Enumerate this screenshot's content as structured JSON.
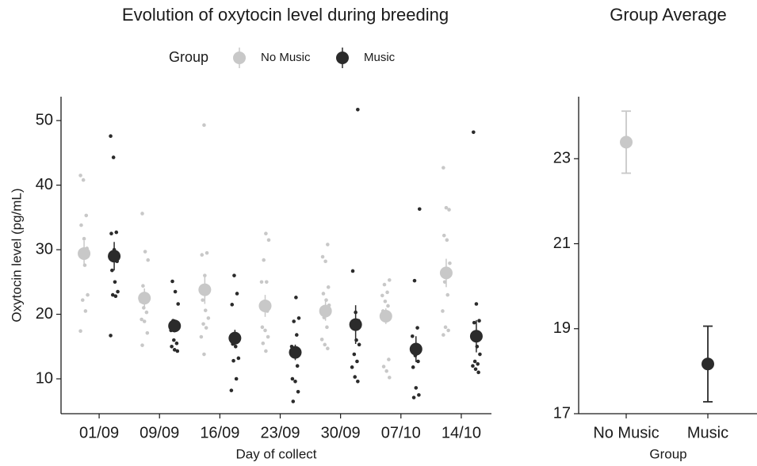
{
  "chart_data": [
    {
      "type": "dot",
      "title": "Evolution of oxytocin level during breeding",
      "legend_title": "Group",
      "x_label": "Day of collect",
      "y_label": "Oxytocin level (pg/mL)",
      "categories": [
        "01/09",
        "09/09",
        "16/09",
        "23/09",
        "30/09",
        "07/10",
        "14/10"
      ],
      "ylim": [
        4.6,
        53.7
      ],
      "yticks": [
        10,
        20,
        30,
        40,
        50
      ],
      "series": [
        {
          "name": "No Music",
          "color": "#c8c8c8",
          "values": [
            29.4,
            22.5,
            23.8,
            21.3,
            20.5,
            19.7,
            26.4
          ],
          "errors": [
            2.0,
            1.5,
            2.2,
            1.7,
            1.5,
            1.2,
            2.2
          ],
          "points": [
            [
              41.5,
              40.8,
              35.3,
              33.8,
              31.7,
              30.2,
              29.0,
              27.6,
              23.0,
              22.2,
              20.5,
              17.4
            ],
            [
              35.6,
              29.7,
              28.4,
              24.4,
              23.0,
              22.0,
              21.0,
              20.3,
              19.2,
              18.9,
              17.1,
              15.2
            ],
            [
              49.3,
              29.5,
              29.2,
              26.0,
              24.0,
              22.2,
              20.6,
              19.4,
              18.5,
              17.9,
              16.5,
              13.8
            ],
            [
              32.5,
              31.5,
              28.4,
              25.0,
              25.0,
              22.0,
              20.5,
              18.0,
              17.5,
              16.5,
              15.5,
              14.3
            ],
            [
              30.8,
              28.9,
              28.2,
              24.2,
              23.2,
              22.2,
              21.4,
              19.5,
              18.0,
              16.1,
              15.3,
              14.7
            ],
            [
              25.3,
              24.6,
              23.4,
              22.9,
              22.0,
              21.3,
              20.5,
              19.1,
              13.0,
              11.9,
              11.2,
              10.2
            ],
            [
              42.7,
              36.5,
              36.2,
              32.2,
              31.5,
              27.9,
              25.0,
              23.0,
              20.5,
              18.0,
              17.5,
              16.8
            ]
          ]
        },
        {
          "name": "Music",
          "color": "#2b2b2b",
          "values": [
            29.0,
            18.2,
            16.3,
            14.1,
            18.4,
            14.6,
            16.6
          ],
          "errors": [
            2.2,
            1.0,
            1.3,
            1.2,
            3.0,
            2.0,
            2.5
          ],
          "points": [
            [
              47.6,
              44.3,
              32.7,
              32.5,
              30.0,
              28.2,
              26.8,
              25.0,
              23.5,
              23.0,
              22.8,
              16.7
            ],
            [
              25.1,
              23.5,
              21.6,
              19.0,
              18.3,
              17.5,
              16.0,
              15.5,
              15.0,
              14.5,
              14.3
            ],
            [
              26.0,
              23.2,
              21.5,
              17.0,
              16.0,
              15.4,
              15.0,
              13.2,
              12.8,
              10.0,
              8.2
            ],
            [
              22.6,
              19.4,
              18.9,
              16.8,
              15.0,
              13.5,
              12.0,
              10.0,
              9.6,
              8.0,
              6.5
            ],
            [
              51.7,
              26.7,
              20.3,
              19.0,
              18.8,
              16.0,
              15.3,
              13.8,
              12.7,
              11.8,
              10.3,
              9.6
            ],
            [
              36.3,
              25.2,
              17.9,
              16.6,
              13.6,
              12.7,
              11.8,
              8.6,
              7.5,
              7.1
            ],
            [
              48.2,
              21.6,
              19.0,
              18.7,
              15.0,
              13.8,
              12.7,
              12.3,
              12.0,
              11.5,
              11.0
            ]
          ]
        }
      ]
    },
    {
      "type": "pointrange",
      "title": "Group Average",
      "x_label": "Group",
      "categories": [
        "No Music",
        "Music"
      ],
      "values": [
        23.39,
        18.17
      ],
      "errors": [
        0.73,
        0.89
      ],
      "colors": [
        "#c8c8c8",
        "#2b2b2b"
      ],
      "ylim": [
        17,
        24.46
      ],
      "yticks": [
        17,
        19,
        21,
        23
      ]
    }
  ]
}
